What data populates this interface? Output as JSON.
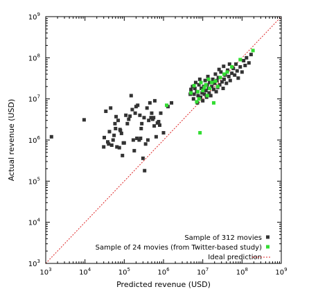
{
  "chart_data": {
    "type": "scatter",
    "xlabel": "Predicted revenue (USD)",
    "ylabel": "Actual revenue (USD)",
    "xscale": "log",
    "yscale": "log",
    "xlim": [
      1000,
      1000000000
    ],
    "ylim": [
      1000,
      1000000000
    ],
    "grid": false,
    "legend_position": "bottom-right",
    "x_ticks": [
      {
        "value": 1000,
        "base": "10",
        "exp": "3"
      },
      {
        "value": 10000,
        "base": "10",
        "exp": "4"
      },
      {
        "value": 100000,
        "base": "10",
        "exp": "5"
      },
      {
        "value": 1000000,
        "base": "10",
        "exp": "6"
      },
      {
        "value": 10000000,
        "base": "10",
        "exp": "7"
      },
      {
        "value": 100000000,
        "base": "10",
        "exp": "8"
      },
      {
        "value": 1000000000,
        "base": "10",
        "exp": "9"
      }
    ],
    "y_ticks": [
      {
        "value": 1000,
        "base": "10",
        "exp": "3"
      },
      {
        "value": 10000,
        "base": "10",
        "exp": "4"
      },
      {
        "value": 100000,
        "base": "10",
        "exp": "5"
      },
      {
        "value": 1000000,
        "base": "10",
        "exp": "6"
      },
      {
        "value": 10000000,
        "base": "10",
        "exp": "7"
      },
      {
        "value": 100000000,
        "base": "10",
        "exp": "8"
      },
      {
        "value": 1000000000,
        "base": "10",
        "exp": "9"
      }
    ],
    "series": [
      {
        "name": "Sample of 312 movies",
        "color": "#333333",
        "marker": "square",
        "points": [
          [
            1400,
            1200000
          ],
          [
            9500,
            3100000
          ],
          [
            30000,
            680000
          ],
          [
            31000,
            1150000
          ],
          [
            34000,
            5000000
          ],
          [
            38000,
            900000
          ],
          [
            40000,
            800000
          ],
          [
            42000,
            1600000
          ],
          [
            45000,
            6000000
          ],
          [
            48000,
            750000
          ],
          [
            52000,
            1000000
          ],
          [
            55000,
            1300000
          ],
          [
            58000,
            2500000
          ],
          [
            60000,
            1900000
          ],
          [
            62000,
            3700000
          ],
          [
            65000,
            680000
          ],
          [
            70000,
            3000000
          ],
          [
            75000,
            650000
          ],
          [
            78000,
            1800000
          ],
          [
            80000,
            1700000
          ],
          [
            85000,
            1450000
          ],
          [
            90000,
            420000
          ],
          [
            95000,
            850000
          ],
          [
            100000,
            850000
          ],
          [
            110000,
            4000000
          ],
          [
            120000,
            2500000
          ],
          [
            130000,
            3200000
          ],
          [
            140000,
            3800000
          ],
          [
            150000,
            12000000
          ],
          [
            160000,
            5500000
          ],
          [
            170000,
            1000000
          ],
          [
            180000,
            550000
          ],
          [
            190000,
            4500000
          ],
          [
            200000,
            6500000
          ],
          [
            210000,
            1100000
          ],
          [
            220000,
            7000000
          ],
          [
            240000,
            1000000
          ],
          [
            250000,
            4000000
          ],
          [
            260000,
            1100000
          ],
          [
            270000,
            1900000
          ],
          [
            280000,
            2500000
          ],
          [
            300000,
            360000
          ],
          [
            320000,
            3500000
          ],
          [
            330000,
            180000
          ],
          [
            350000,
            800000
          ],
          [
            380000,
            6000000
          ],
          [
            400000,
            1000000
          ],
          [
            420000,
            3000000
          ],
          [
            450000,
            8000000
          ],
          [
            480000,
            3500000
          ],
          [
            500000,
            4500000
          ],
          [
            530000,
            3200000
          ],
          [
            560000,
            3500000
          ],
          [
            580000,
            2200000
          ],
          [
            600000,
            9000000
          ],
          [
            650000,
            1200000
          ],
          [
            700000,
            2600000
          ],
          [
            750000,
            2800000
          ],
          [
            800000,
            2300000
          ],
          [
            850000,
            4500000
          ],
          [
            1000000,
            1500000
          ],
          [
            1300000,
            6500000
          ],
          [
            1600000,
            8000000
          ],
          [
            4800000,
            13000000
          ],
          [
            5000000,
            17000000
          ],
          [
            5500000,
            20000000
          ],
          [
            5800000,
            10000000
          ],
          [
            6000000,
            13000000
          ],
          [
            6300000,
            18000000
          ],
          [
            6600000,
            25000000
          ],
          [
            7000000,
            15000000
          ],
          [
            7300000,
            8000000
          ],
          [
            7600000,
            12000000
          ],
          [
            8000000,
            22000000
          ],
          [
            8400000,
            30000000
          ],
          [
            8800000,
            11000000
          ],
          [
            9200000,
            18000000
          ],
          [
            9600000,
            14000000
          ],
          [
            10000000,
            9000000
          ],
          [
            10500000,
            20000000
          ],
          [
            11000000,
            13000000
          ],
          [
            11500000,
            28000000
          ],
          [
            12000000,
            16000000
          ],
          [
            12500000,
            11000000
          ],
          [
            13000000,
            22000000
          ],
          [
            13500000,
            35000000
          ],
          [
            14000000,
            18000000
          ],
          [
            14500000,
            14000000
          ],
          [
            15000000,
            25000000
          ],
          [
            16000000,
            12000000
          ],
          [
            17000000,
            20000000
          ],
          [
            18000000,
            30000000
          ],
          [
            19000000,
            17000000
          ],
          [
            20000000,
            24000000
          ],
          [
            21000000,
            40000000
          ],
          [
            22000000,
            15000000
          ],
          [
            23000000,
            28000000
          ],
          [
            24000000,
            19000000
          ],
          [
            25000000,
            33000000
          ],
          [
            27000000,
            22000000
          ],
          [
            29000000,
            45000000
          ],
          [
            31000000,
            26000000
          ],
          [
            33000000,
            18000000
          ],
          [
            35000000,
            30000000
          ],
          [
            37000000,
            38000000
          ],
          [
            40000000,
            24000000
          ],
          [
            43000000,
            50000000
          ],
          [
            46000000,
            35000000
          ],
          [
            50000000,
            28000000
          ],
          [
            55000000,
            42000000
          ],
          [
            60000000,
            55000000
          ],
          [
            65000000,
            38000000
          ],
          [
            70000000,
            70000000
          ],
          [
            75000000,
            48000000
          ],
          [
            80000000,
            32000000
          ],
          [
            90000000,
            60000000
          ],
          [
            100000000,
            45000000
          ],
          [
            110000000,
            85000000
          ],
          [
            120000000,
            65000000
          ],
          [
            130000000,
            100000000
          ],
          [
            150000000,
            75000000
          ],
          [
            170000000,
            120000000
          ],
          [
            26000000,
            52000000
          ],
          [
            34000000,
            62000000
          ],
          [
            48000000,
            70000000
          ]
        ]
      },
      {
        "name": "Sample of 24 movies (from Twitter-based study)",
        "color": "#33dd33",
        "marker": "square",
        "points": [
          [
            1200000,
            7000000
          ],
          [
            5000000,
            14000000
          ],
          [
            6000000,
            21000000
          ],
          [
            7000000,
            8500000
          ],
          [
            7500000,
            15000000
          ],
          [
            8000000,
            10000000
          ],
          [
            8500000,
            1500000
          ],
          [
            9000000,
            25000000
          ],
          [
            10000000,
            16000000
          ],
          [
            11000000,
            19000000
          ],
          [
            12000000,
            22000000
          ],
          [
            13000000,
            12000000
          ],
          [
            14000000,
            30000000
          ],
          [
            15000000,
            18000000
          ],
          [
            17000000,
            25000000
          ],
          [
            19000000,
            8000000
          ],
          [
            21000000,
            27000000
          ],
          [
            24000000,
            20000000
          ],
          [
            28000000,
            33000000
          ],
          [
            35000000,
            40000000
          ],
          [
            42000000,
            45000000
          ],
          [
            55000000,
            60000000
          ],
          [
            90000000,
            90000000
          ],
          [
            190000000,
            150000000
          ]
        ]
      },
      {
        "name": "Ideal prediction",
        "color": "#dd2222",
        "marker": "dashed-line"
      }
    ]
  }
}
